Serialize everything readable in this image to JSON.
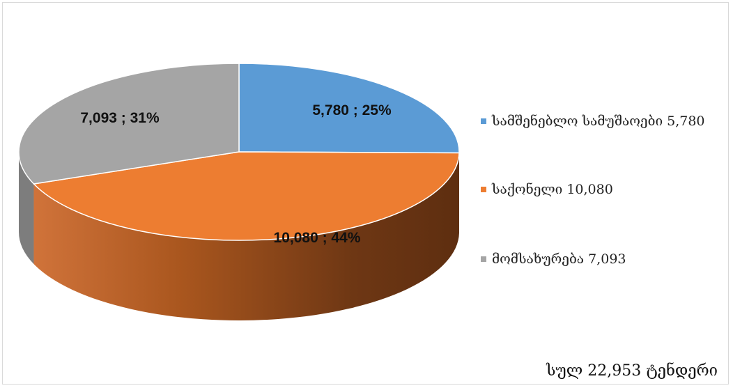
{
  "chart_data": {
    "type": "pie",
    "style": "3d",
    "slices": [
      {
        "label": "სამშენებლო სამუშაოები",
        "value": 5780,
        "value_text": "5,780",
        "percent": 25,
        "color": "#5b9bd5"
      },
      {
        "label": "საქონელი",
        "value": 10080,
        "value_text": "10,080",
        "percent": 44,
        "color": "#ed7d31"
      },
      {
        "label": "მომსახურება",
        "value": 7093,
        "value_text": "7,093",
        "percent": 31,
        "color": "#a5a5a5"
      }
    ],
    "data_labels": [
      "5,780 ; 25%",
      "10,080 ; 44%",
      "7,093 ; 31%"
    ],
    "legend": {
      "placement": "right",
      "entries": [
        "სამშენებლო სამუშაოები 5,780",
        "საქონელი 10,080",
        "მომსახურება 7,093"
      ]
    },
    "total_label": "სულ 22,953 ტენდერი"
  }
}
